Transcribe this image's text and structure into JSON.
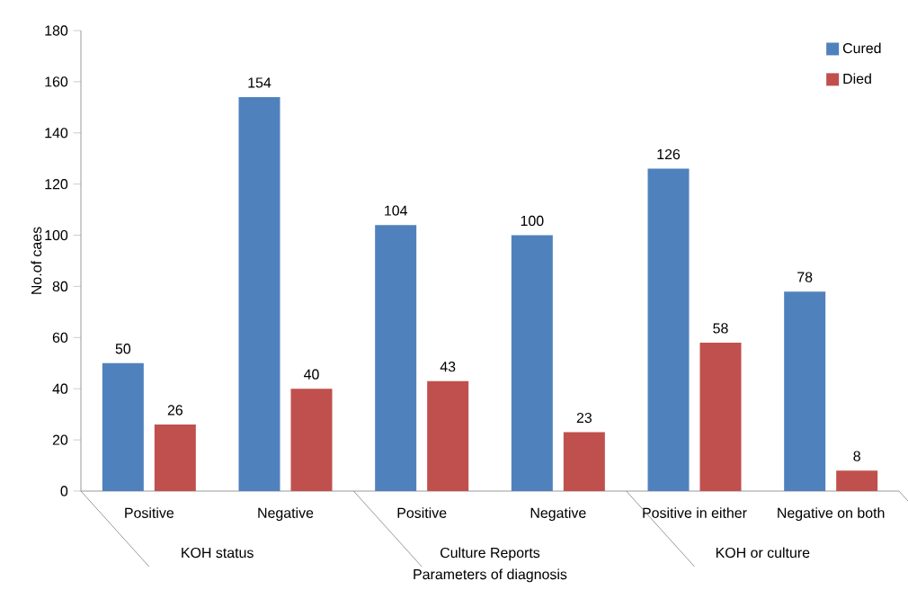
{
  "chart_data": {
    "type": "bar",
    "categories": [
      "Positive",
      "Negative",
      "Positive",
      "Negative",
      "Positive in either",
      "Negative on both"
    ],
    "series": [
      {
        "name": "Cured",
        "color": "#4f81bd",
        "values": [
          50,
          154,
          104,
          100,
          126,
          78
        ]
      },
      {
        "name": "Died",
        "color": "#c0504d",
        "values": [
          26,
          40,
          43,
          23,
          58,
          8
        ]
      }
    ],
    "xlabel": "Parameters of diagnosis",
    "ylabel": "No.of caes",
    "annotations": [
      "KOH status",
      "Culture Reports",
      "KOH or culture"
    ],
    "ylim": [
      0,
      180
    ],
    "yticks": [
      0,
      20,
      40,
      60,
      80,
      100,
      120,
      140,
      160,
      180
    ],
    "data_labels": true,
    "legend": "top right",
    "grid": false
  }
}
